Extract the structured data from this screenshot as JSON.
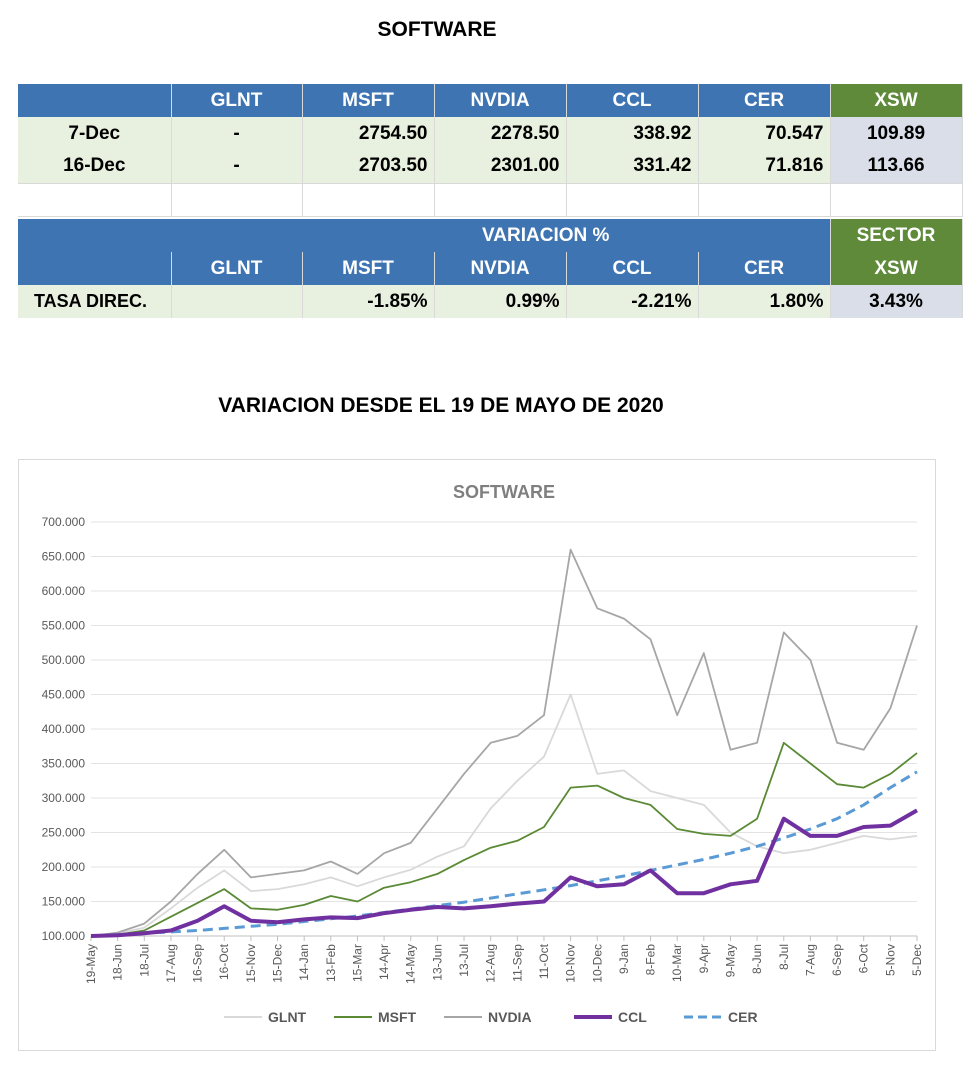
{
  "header": {
    "title": "SOFTWARE",
    "subtitle": "VARIACION DESDE EL 19 DE MAYO DE 2020"
  },
  "table1": {
    "columns": [
      "",
      "GLNT",
      "MSFT",
      "NVDIA",
      "CCL",
      "CER",
      "XSW"
    ],
    "rows": [
      [
        "7-Dec",
        "-",
        "2754.50",
        "2278.50",
        "338.92",
        "70.547",
        "109.89"
      ],
      [
        "16-Dec",
        "-",
        "2703.50",
        "2301.00",
        "331.42",
        "71.816",
        "113.66"
      ]
    ]
  },
  "table2": {
    "group_label": "VARIACION %",
    "sector_label": "SECTOR",
    "columns": [
      "",
      "GLNT",
      "MSFT",
      "NVDIA",
      "CCL",
      "CER",
      "XSW"
    ],
    "row": [
      "TASA DIREC.",
      "",
      "-1.85%",
      "0.99%",
      "-2.21%",
      "1.80%",
      "3.43%"
    ]
  },
  "colors": {
    "header_blue": "#3f74b3",
    "header_green": "#5f8a3a",
    "row_green": "#e8f0df",
    "xsw_cell": "#d9dee8"
  },
  "chart_data": {
    "type": "line",
    "title": "SOFTWARE",
    "ylim": [
      100,
      700
    ],
    "yticks": [
      "100.000",
      "150.000",
      "200.000",
      "250.000",
      "300.000",
      "350.000",
      "400.000",
      "450.000",
      "500.000",
      "550.000",
      "600.000",
      "650.000",
      "700.000"
    ],
    "categories": [
      "19-May",
      "18-Jun",
      "18-Jul",
      "17-Aug",
      "16-Sep",
      "16-Oct",
      "15-Nov",
      "15-Dec",
      "14-Jan",
      "13-Feb",
      "15-Mar",
      "14-Apr",
      "14-May",
      "13-Jun",
      "13-Jul",
      "12-Aug",
      "11-Sep",
      "11-Oct",
      "10-Nov",
      "10-Dec",
      "9-Jan",
      "8-Feb",
      "10-Mar",
      "9-Apr",
      "9-May",
      "8-Jun",
      "8-Jul",
      "7-Aug",
      "6-Sep",
      "6-Oct",
      "5-Nov",
      "5-Dec"
    ],
    "grid": true,
    "legend_position": "bottom",
    "series": [
      {
        "name": "GLNT",
        "color": "#d9d9d9",
        "style": "solid",
        "values": [
          100,
          104,
          112,
          140,
          170,
          195,
          165,
          168,
          175,
          185,
          172,
          185,
          196,
          215,
          230,
          285,
          325,
          360,
          450,
          335,
          340,
          310,
          300,
          290,
          250,
          230,
          220,
          225,
          235,
          245,
          240,
          245
        ]
      },
      {
        "name": "MSFT",
        "color": "#5a8a35",
        "style": "solid",
        "values": [
          100,
          102,
          108,
          128,
          148,
          168,
          140,
          138,
          145,
          158,
          150,
          170,
          178,
          190,
          210,
          228,
          238,
          258,
          315,
          318,
          300,
          290,
          255,
          248,
          245,
          270,
          380,
          350,
          320,
          315,
          335,
          365
        ]
      },
      {
        "name": "NVDIA",
        "color": "#a6a6a6",
        "style": "solid",
        "values": [
          100,
          105,
          118,
          150,
          190,
          225,
          185,
          190,
          195,
          208,
          190,
          220,
          235,
          285,
          335,
          380,
          390,
          420,
          660,
          575,
          560,
          530,
          420,
          510,
          370,
          380,
          540,
          500,
          380,
          370,
          430,
          550
        ]
      },
      {
        "name": "CCL",
        "color": "#7030a0",
        "style": "thick",
        "values": [
          100,
          101,
          104,
          108,
          122,
          143,
          122,
          120,
          124,
          127,
          126,
          133,
          138,
          142,
          140,
          143,
          147,
          150,
          185,
          172,
          175,
          195,
          162,
          162,
          175,
          180,
          270,
          245,
          245,
          258,
          260,
          282
        ]
      },
      {
        "name": "CER",
        "color": "#5b9bd5",
        "style": "dashed",
        "values": [
          100,
          102,
          104,
          106,
          108,
          111,
          114,
          117,
          121,
          125,
          129,
          134,
          139,
          144,
          149,
          155,
          161,
          167,
          173,
          180,
          187,
          195,
          203,
          211,
          220,
          230,
          242,
          255,
          270,
          290,
          315,
          338
        ]
      }
    ]
  }
}
